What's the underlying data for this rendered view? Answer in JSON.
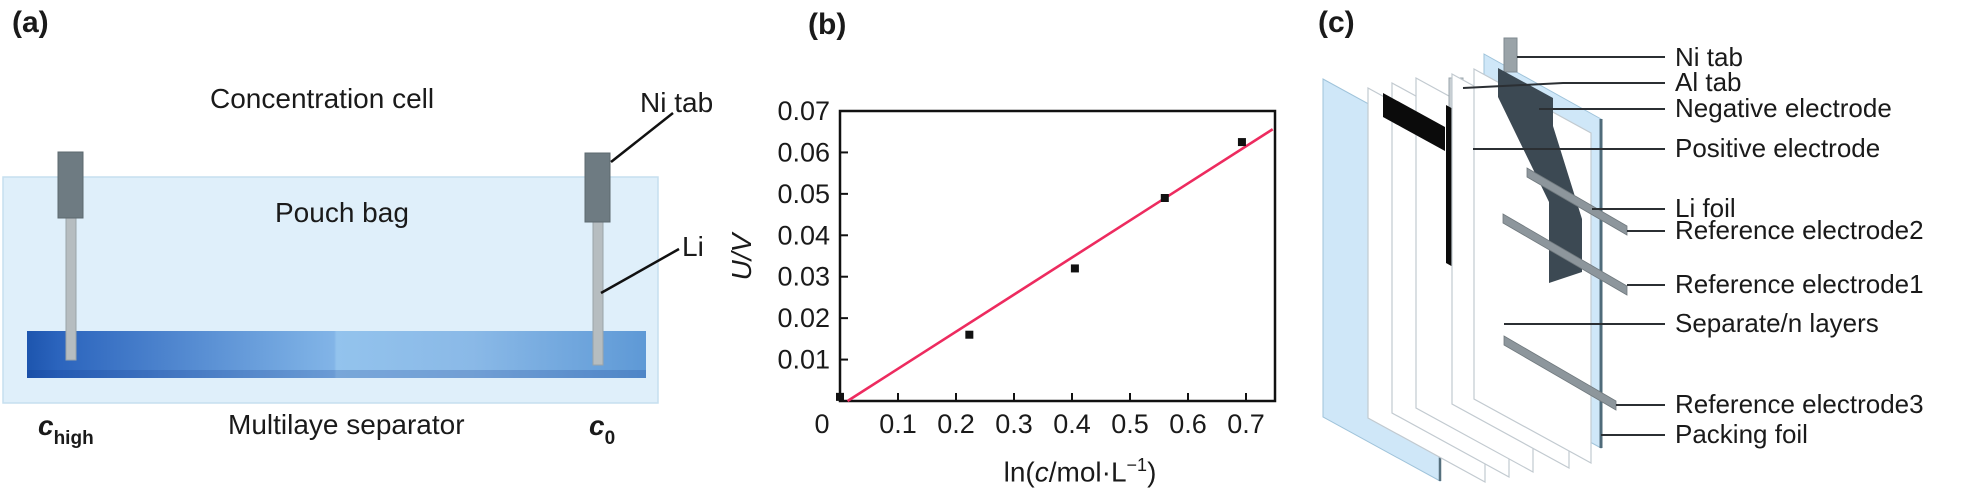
{
  "panel_a": {
    "tag": "(a)",
    "title": "Concentration cell",
    "pouch_label": "Pouch bag",
    "separator_label": "Multilaye separator",
    "ni_tab_label": "Ni tab",
    "li_label": "Li",
    "c_high": {
      "var": "c",
      "sub": "high"
    },
    "c_zero": {
      "var": "c",
      "sub": "0"
    },
    "colors": {
      "pouch": "#dfeffa",
      "bar_dark": "#1d55ae",
      "bar_mid": "#79ade3",
      "bar_light": "#93c3ed",
      "bar_right": "#5e99d6",
      "tab": "#6e7b82",
      "rod": "#b6bdc0"
    }
  },
  "panel_b": {
    "tag": "(b)",
    "ylabel": "U/V",
    "xlabel_parts": {
      "prefix": "ln(",
      "var": "c",
      "mid": "/mol·L",
      "sup": "−1",
      "suffix": ")"
    }
  },
  "chart_data": {
    "type": "scatter",
    "title": "",
    "xlabel": "ln(c/mol·L⁻¹)",
    "ylabel": "U/V",
    "xlim": [
      0,
      0.75
    ],
    "ylim": [
      0,
      0.07
    ],
    "xticks": [
      0,
      0.1,
      0.2,
      0.3,
      0.4,
      0.5,
      0.6,
      0.7
    ],
    "yticks": [
      0.01,
      0.02,
      0.03,
      0.04,
      0.05,
      0.06,
      0.07
    ],
    "grid": false,
    "legend": "none",
    "points": [
      [
        0.0,
        0.001
      ],
      [
        0.223,
        0.016
      ],
      [
        0.405,
        0.032
      ],
      [
        0.56,
        0.049
      ],
      [
        0.693,
        0.0625
      ]
    ],
    "fit_line": {
      "x1": 0.013,
      "y1": 0.0,
      "x2": 0.746,
      "y2": 0.0656,
      "color": "#ed2b5f"
    },
    "marker": "square",
    "marker_color": "#111111"
  },
  "panel_c": {
    "tag": "(c)",
    "labels": [
      "Ni tab",
      "Al tab",
      "Negative electrode",
      "Positive electrode",
      "Li foil",
      "Reference electrode2",
      "Reference electrode1",
      "Separate/n layers",
      "Reference electrode3",
      "Packing foil"
    ],
    "colors": {
      "packing_foil": "#cfe7f8",
      "separator_sheet": "#ffffff",
      "positive_electrode": "#0b0b0b",
      "negative_electrode": "#3c4953",
      "ni_tab": "#9aa3a8",
      "al_tab": "#c9d0d4",
      "reference_strip": "#8d969c"
    }
  }
}
